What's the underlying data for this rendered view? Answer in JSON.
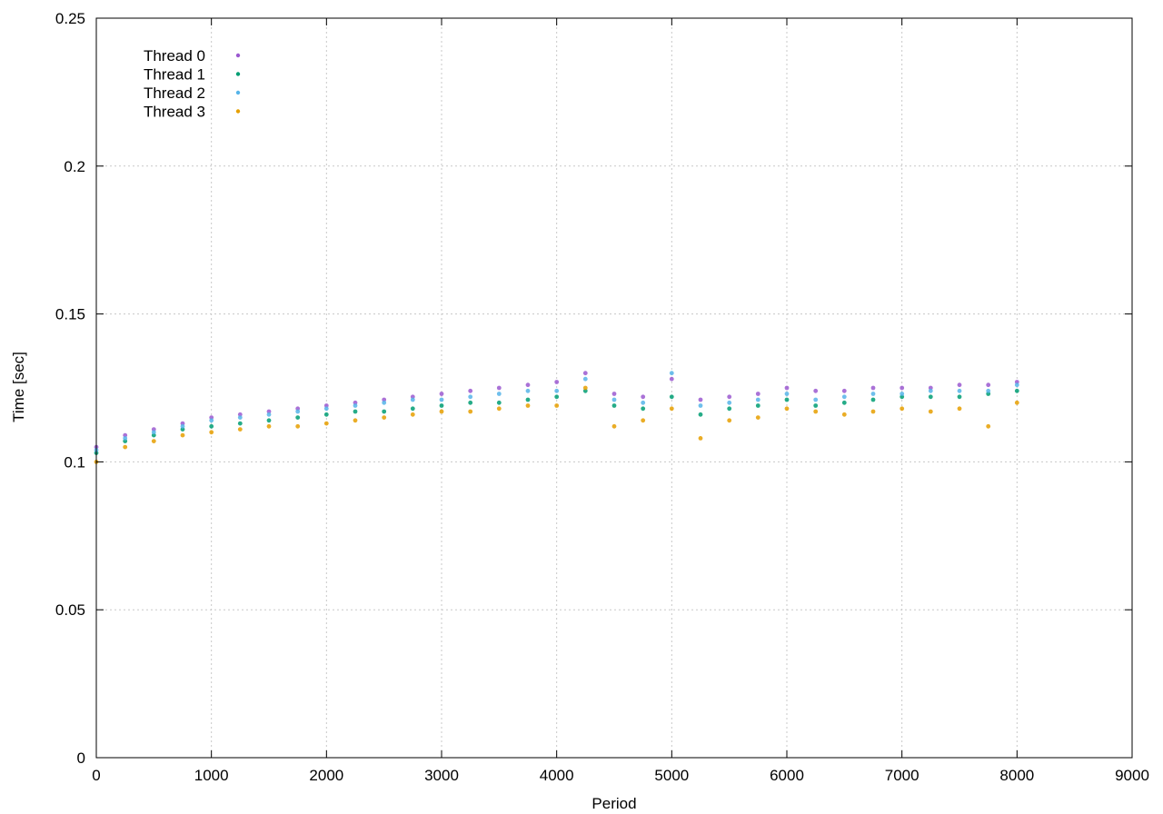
{
  "chart_data": {
    "type": "scatter",
    "title": "",
    "xlabel": "Period",
    "ylabel": "Time [sec]",
    "xlim": [
      0,
      9000
    ],
    "ylim": [
      0,
      0.25
    ],
    "x_ticks": [
      0,
      1000,
      2000,
      3000,
      4000,
      5000,
      6000,
      7000,
      8000,
      9000
    ],
    "y_ticks": [
      0,
      0.05,
      0.1,
      0.15,
      0.2,
      0.25
    ],
    "x_tick_labels": [
      "0",
      "1000",
      "2000",
      "3000",
      "4000",
      "5000",
      "6000",
      "7000",
      "8000",
      "9000"
    ],
    "y_tick_labels": [
      "0",
      "0.05",
      "0.1",
      "0.15",
      "0.2",
      "0.25"
    ],
    "grid": true,
    "legend_position": "top-left",
    "series": [
      {
        "name": "Thread 0",
        "color": "#9b59d0",
        "x": [
          0,
          250,
          500,
          750,
          1000,
          1250,
          1500,
          1750,
          2000,
          2250,
          2500,
          2750,
          3000,
          3250,
          3500,
          3750,
          4000,
          4250,
          4500,
          4750,
          5000,
          5250,
          5500,
          5750,
          6000,
          6250,
          6500,
          6750,
          7000,
          7250,
          7500,
          7750,
          8000
        ],
        "y": [
          0.105,
          0.109,
          0.111,
          0.113,
          0.115,
          0.116,
          0.117,
          0.118,
          0.119,
          0.12,
          0.121,
          0.122,
          0.123,
          0.124,
          0.125,
          0.126,
          0.127,
          0.13,
          0.123,
          0.122,
          0.128,
          0.121,
          0.122,
          0.123,
          0.125,
          0.124,
          0.124,
          0.125,
          0.125,
          0.125,
          0.126,
          0.126,
          0.127
        ]
      },
      {
        "name": "Thread 1",
        "color": "#009e73",
        "x": [
          0,
          250,
          500,
          750,
          1000,
          1250,
          1500,
          1750,
          2000,
          2250,
          2500,
          2750,
          3000,
          3250,
          3500,
          3750,
          4000,
          4250,
          4500,
          4750,
          5000,
          5250,
          5500,
          5750,
          6000,
          6250,
          6500,
          6750,
          7000,
          7250,
          7500,
          7750,
          8000
        ],
        "y": [
          0.103,
          0.107,
          0.109,
          0.111,
          0.112,
          0.113,
          0.114,
          0.115,
          0.116,
          0.117,
          0.117,
          0.118,
          0.119,
          0.12,
          0.12,
          0.121,
          0.122,
          0.124,
          0.119,
          0.118,
          0.122,
          0.116,
          0.118,
          0.119,
          0.121,
          0.119,
          0.12,
          0.121,
          0.122,
          0.122,
          0.122,
          0.123,
          0.124
        ]
      },
      {
        "name": "Thread 2",
        "color": "#56b4e9",
        "x": [
          0,
          250,
          500,
          750,
          1000,
          1250,
          1500,
          1750,
          2000,
          2250,
          2500,
          2750,
          3000,
          3250,
          3500,
          3750,
          4000,
          4250,
          4500,
          4750,
          5000,
          5250,
          5500,
          5750,
          6000,
          6250,
          6500,
          6750,
          7000,
          7250,
          7500,
          7750,
          8000
        ],
        "y": [
          0.104,
          0.108,
          0.11,
          0.112,
          0.114,
          0.115,
          0.116,
          0.117,
          0.118,
          0.119,
          0.12,
          0.121,
          0.121,
          0.122,
          0.123,
          0.124,
          0.124,
          0.128,
          0.121,
          0.12,
          0.13,
          0.119,
          0.12,
          0.121,
          0.123,
          0.121,
          0.122,
          0.123,
          0.123,
          0.124,
          0.124,
          0.124,
          0.126
        ]
      },
      {
        "name": "Thread 3",
        "color": "#e69f00",
        "x": [
          0,
          250,
          500,
          750,
          1000,
          1250,
          1500,
          1750,
          2000,
          2250,
          2500,
          2750,
          3000,
          3250,
          3500,
          3750,
          4000,
          4250,
          4500,
          4750,
          5000,
          5250,
          5500,
          5750,
          6000,
          6250,
          6500,
          6750,
          7000,
          7250,
          7500,
          7750,
          8000
        ],
        "y": [
          0.1,
          0.105,
          0.107,
          0.109,
          0.11,
          0.111,
          0.112,
          0.112,
          0.113,
          0.114,
          0.115,
          0.116,
          0.117,
          0.117,
          0.118,
          0.119,
          0.119,
          0.125,
          0.112,
          0.114,
          0.118,
          0.108,
          0.114,
          0.115,
          0.118,
          0.117,
          0.116,
          0.117,
          0.118,
          0.117,
          0.118,
          0.112,
          0.12
        ]
      }
    ]
  }
}
